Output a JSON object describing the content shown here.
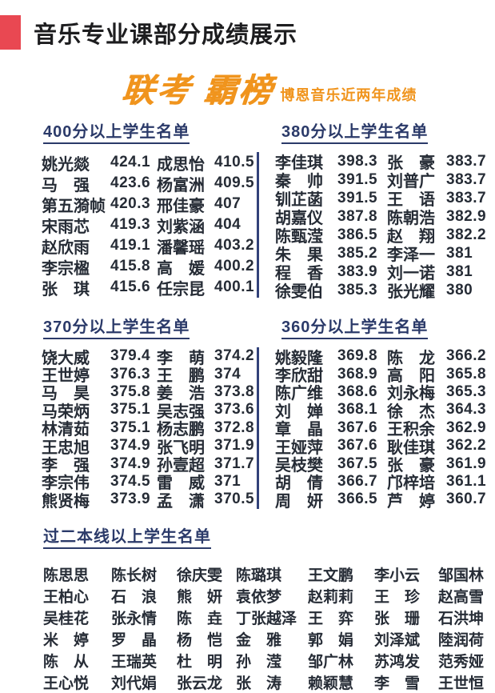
{
  "header": {
    "title": "音乐专业课部分成绩展示"
  },
  "banner": {
    "calligraphy": "联考 霸榜",
    "subtitle": "博恩音乐近两年成绩"
  },
  "colors": {
    "accent_red": "#e94852",
    "accent_orange": "#f0941d",
    "heading_navy": "#2b3a69",
    "divider_navy": "#32427a",
    "text_dark": "#262c36"
  },
  "sections": [
    {
      "id": "above-400",
      "heading": "400分以上学生名单",
      "rows": [
        {
          "n1": "姚光燚",
          "s1": "424.1",
          "n2": "成思怡",
          "s2": "410.5"
        },
        {
          "n1": "马　强",
          "s1": "423.6",
          "n2": "杨富洲",
          "s2": "409.5"
        },
        {
          "n1": "第五漪帧",
          "s1": "420.3",
          "n2": "邢佳豪",
          "s2": "407"
        },
        {
          "n1": "宋雨芯",
          "s1": "419.3",
          "n2": "刘紫涵",
          "s2": "404"
        },
        {
          "n1": "赵欣雨",
          "s1": "419.1",
          "n2": "潘馨瑶",
          "s2": "403.2"
        },
        {
          "n1": "李宗楹",
          "s1": "415.8",
          "n2": "高　媛",
          "s2": "400.2"
        },
        {
          "n1": "张　琪",
          "s1": "415.6",
          "n2": "任宗昆",
          "s2": "400.1"
        }
      ]
    },
    {
      "id": "above-380",
      "heading": "380分以上学生名单",
      "rows": [
        {
          "n1": "李佳琪",
          "s1": "398.3",
          "n2": "张　豪",
          "s2": "383.7"
        },
        {
          "n1": "秦　帅",
          "s1": "391.5",
          "n2": "刘普广",
          "s2": "383.7"
        },
        {
          "n1": "钏芷菡",
          "s1": "391.5",
          "n2": "王　语",
          "s2": "383.7"
        },
        {
          "n1": "胡嘉仪",
          "s1": "387.8",
          "n2": "陈朝浩",
          "s2": "382.9"
        },
        {
          "n1": "陈甄滢",
          "s1": "386.5",
          "n2": "赵　翔",
          "s2": "382.2"
        },
        {
          "n1": "朱　果",
          "s1": "385.2",
          "n2": "李泽一",
          "s2": "381"
        },
        {
          "n1": "程　香",
          "s1": "383.9",
          "n2": "刘一诺",
          "s2": "381"
        },
        {
          "n1": "徐雯伯",
          "s1": "385.3",
          "n2": "张光耀",
          "s2": "380"
        }
      ]
    },
    {
      "id": "above-370",
      "heading": "370分以上学生名单",
      "rows": [
        {
          "n1": "饶大威",
          "s1": "379.4",
          "n2": "李　萌",
          "s2": "374.2"
        },
        {
          "n1": "王世婷",
          "s1": "376.3",
          "n2": "王　鹏",
          "s2": "374"
        },
        {
          "n1": "马　昊",
          "s1": "375.8",
          "n2": "姜　浩",
          "s2": "373.8"
        },
        {
          "n1": "马荣炳",
          "s1": "375.1",
          "n2": "吴志强",
          "s2": "373.6"
        },
        {
          "n1": "林清茹",
          "s1": "375.1",
          "n2": "杨志鹏",
          "s2": "372.8"
        },
        {
          "n1": "王忠旭",
          "s1": "374.9",
          "n2": "张飞明",
          "s2": "371.9"
        },
        {
          "n1": "李　强",
          "s1": "374.9",
          "n2": "孙壹超",
          "s2": "371.7"
        },
        {
          "n1": "李宗伟",
          "s1": "374.5",
          "n2": "雷　威",
          "s2": "371"
        },
        {
          "n1": "熊贤梅",
          "s1": "373.9",
          "n2": "孟　潇",
          "s2": "370.5"
        }
      ]
    },
    {
      "id": "above-360",
      "heading": "360分以上学生名单",
      "rows": [
        {
          "n1": "姚毅隆",
          "s1": "369.8",
          "n2": "陈　龙",
          "s2": "366.2"
        },
        {
          "n1": "李欣甜",
          "s1": "368.9",
          "n2": "高　阳",
          "s2": "365.8"
        },
        {
          "n1": "陈广维",
          "s1": "368.6",
          "n2": "刘永梅",
          "s2": "365.3"
        },
        {
          "n1": "刘　婵",
          "s1": "368.1",
          "n2": "徐　杰",
          "s2": "364.3"
        },
        {
          "n1": "章　晶",
          "s1": "367.6",
          "n2": "王积余",
          "s2": "362.9"
        },
        {
          "n1": "王娅萍",
          "s1": "367.6",
          "n2": "耿佳琪",
          "s2": "362.2"
        },
        {
          "n1": "吴枝樊",
          "s1": "367.5",
          "n2": "张　豪",
          "s2": "361.9"
        },
        {
          "n1": "胡　倩",
          "s1": "366.7",
          "n2": "邝梓培",
          "s2": "361.1"
        },
        {
          "n1": "周　妍",
          "s1": "366.5",
          "n2": "芦　婷",
          "s2": "360.7"
        }
      ]
    }
  ],
  "erben": {
    "heading": "过二本线以上学生名单",
    "rows": [
      [
        "陈思思",
        "陈长树",
        "徐庆雯",
        "陈璐琪",
        "王文鹏",
        "李小云",
        "邹国林"
      ],
      [
        "王柏心",
        "石　浪",
        "熊　妍",
        "袁依梦",
        "赵莉莉",
        "王　珍",
        "赵高雪"
      ],
      [
        "吴桂花",
        "张永情",
        "陈　垚",
        "丁张越泽",
        "王　弈",
        "张　珊",
        "石洪坤"
      ],
      [
        "米　婷",
        "罗　晶",
        "杨　恺",
        "金　雅",
        "郭　娟",
        "刘泽斌",
        "陸润荷"
      ],
      [
        "陈　从",
        "王瑞英",
        "杜　明",
        "孙　滢",
        "邹广林",
        "苏鸿发",
        "范秀娅"
      ],
      [
        "王心悦",
        "刘代娟",
        "张云龙",
        "张　涛",
        "赖颖慧",
        "李　雪",
        "王世恒"
      ]
    ]
  }
}
